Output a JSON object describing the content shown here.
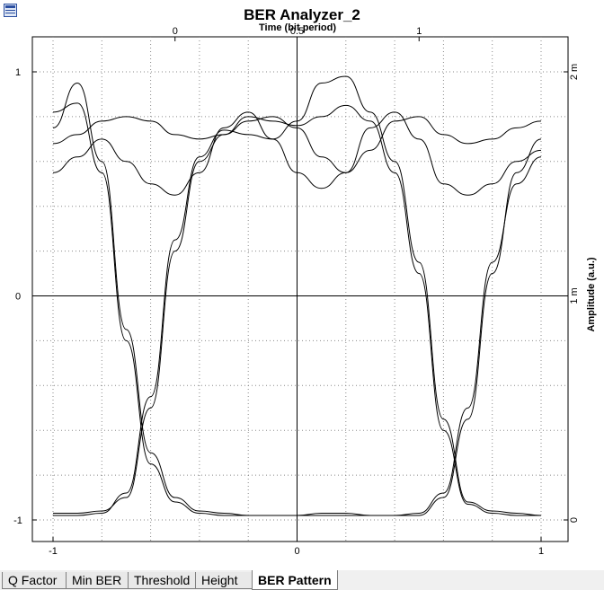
{
  "window": {
    "title": "BER Analyzer_2",
    "app_icon": "window-app-icon"
  },
  "tabs": [
    {
      "label": "Q Factor",
      "active": false
    },
    {
      "label": "Min BER",
      "active": false
    },
    {
      "label": "Threshold",
      "active": false
    },
    {
      "label": "Height",
      "active": false
    },
    {
      "label": "BER Pattern",
      "active": true
    }
  ],
  "chart_data": {
    "type": "line",
    "title": "BER Analyzer_2",
    "xlabel": "",
    "x2label": "Time (bit period)",
    "ylabel": "",
    "y2label": "Amplitude (a.u.)",
    "xlim": [
      -1,
      1
    ],
    "ylim": [
      -1,
      1
    ],
    "x2lim": [
      -0.5,
      1.5
    ],
    "y2lim": [
      0,
      0.002
    ],
    "x_ticks": [
      "-1",
      "0",
      "1"
    ],
    "y_ticks": [
      "-1",
      "0",
      "1"
    ],
    "x2_ticks": [
      "0",
      "0.5",
      "1"
    ],
    "y2_ticks": [
      "0",
      "1 m",
      "2 m"
    ],
    "grid": true,
    "legend": "none",
    "trace_color": "#000000",
    "description_series": {
      "eye_pattern": "overlaid bit-period traces; crossings near x=-0.63 and x=0.72 at y≈-0.45; high level ≈0.75, low level ≈-0.98"
    },
    "series": [
      {
        "x": [
          -1,
          -0.9,
          -0.8,
          -0.7,
          -0.6,
          -0.5,
          -0.4,
          -0.3,
          -0.2,
          -0.1,
          0,
          0.1,
          0.2,
          0.3,
          0.4,
          0.5,
          0.6,
          0.7,
          0.8,
          0.9,
          1
        ],
        "values": [
          0.82,
          0.86,
          0.55,
          -0.2,
          -0.75,
          -0.92,
          -0.97,
          -0.98,
          -0.98,
          -0.98,
          -0.98,
          -0.98,
          -0.98,
          -0.98,
          -0.98,
          -0.98,
          -0.9,
          -0.55,
          0.1,
          0.55,
          0.7
        ]
      },
      {
        "x": [
          -1,
          -0.9,
          -0.8,
          -0.7,
          -0.6,
          -0.5,
          -0.4,
          -0.3,
          -0.2,
          -0.1,
          0,
          0.1,
          0.2,
          0.3,
          0.4,
          0.5,
          0.6,
          0.7,
          0.8,
          0.9,
          1
        ],
        "values": [
          0.75,
          0.95,
          0.6,
          -0.15,
          -0.7,
          -0.9,
          -0.96,
          -0.97,
          -0.98,
          -0.98,
          -0.98,
          -0.97,
          -0.97,
          -0.98,
          -0.98,
          -0.97,
          -0.88,
          -0.5,
          0.15,
          0.5,
          0.62
        ]
      },
      {
        "x": [
          -1,
          -0.9,
          -0.8,
          -0.7,
          -0.6,
          -0.5,
          -0.4,
          -0.3,
          -0.2,
          -0.1,
          0,
          0.1,
          0.2,
          0.3,
          0.4,
          0.5,
          0.6,
          0.7,
          0.8,
          0.9,
          1
        ],
        "values": [
          -0.97,
          -0.97,
          -0.96,
          -0.9,
          -0.5,
          0.2,
          0.6,
          0.72,
          0.8,
          0.78,
          0.76,
          0.8,
          0.85,
          0.78,
          0.55,
          0.1,
          -0.6,
          -0.93,
          -0.97,
          -0.98,
          -0.98
        ]
      },
      {
        "x": [
          -1,
          -0.9,
          -0.8,
          -0.7,
          -0.6,
          -0.5,
          -0.4,
          -0.3,
          -0.2,
          -0.1,
          0,
          0.1,
          0.2,
          0.3,
          0.4,
          0.5,
          0.6,
          0.7,
          0.8,
          0.9,
          1
        ],
        "values": [
          -0.98,
          -0.98,
          -0.97,
          -0.88,
          -0.45,
          0.25,
          0.62,
          0.74,
          0.72,
          0.7,
          0.78,
          0.95,
          0.98,
          0.82,
          0.6,
          0.15,
          -0.55,
          -0.92,
          -0.96,
          -0.97,
          -0.98
        ]
      },
      {
        "x": [
          -1,
          -0.9,
          -0.8,
          -0.7,
          -0.6,
          -0.5,
          -0.4,
          -0.3,
          -0.2,
          -0.1,
          0,
          0.1,
          0.2,
          0.3,
          0.4,
          0.5,
          0.6,
          0.7,
          0.8,
          0.9,
          1
        ],
        "values": [
          0.68,
          0.72,
          0.78,
          0.8,
          0.78,
          0.72,
          0.7,
          0.72,
          0.78,
          0.8,
          0.75,
          0.62,
          0.55,
          0.65,
          0.78,
          0.8,
          0.72,
          0.68,
          0.7,
          0.75,
          0.78
        ]
      },
      {
        "x": [
          -1,
          -0.9,
          -0.8,
          -0.7,
          -0.6,
          -0.5,
          -0.4,
          -0.3,
          -0.2,
          -0.1,
          0,
          0.1,
          0.2,
          0.3,
          0.4,
          0.5,
          0.6,
          0.7,
          0.8,
          0.9,
          1
        ],
        "values": [
          0.55,
          0.62,
          0.7,
          0.6,
          0.5,
          0.45,
          0.55,
          0.75,
          0.82,
          0.7,
          0.55,
          0.48,
          0.55,
          0.75,
          0.82,
          0.7,
          0.5,
          0.45,
          0.5,
          0.6,
          0.65
        ]
      }
    ]
  }
}
